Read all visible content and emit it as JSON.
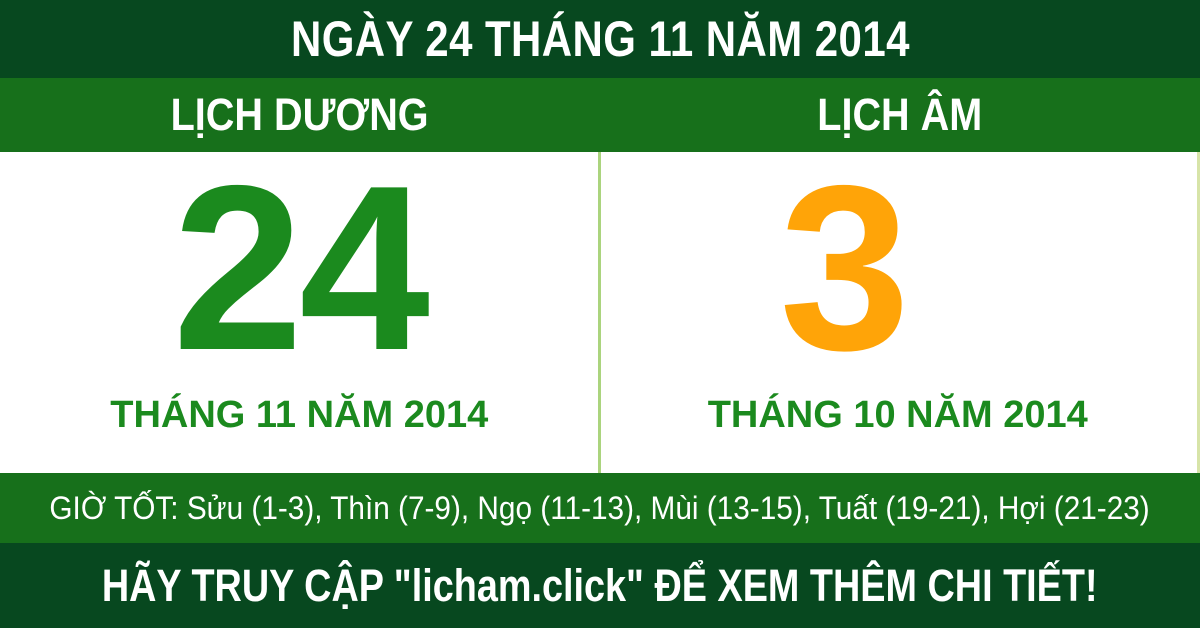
{
  "colors": {
    "dark_green": "#07481f",
    "medium_green": "#17701b",
    "number_green": "#1b8a1e",
    "lunar_orange": "#ffa408",
    "divider_light_green": "#abd47e",
    "text_white": "#ffffff"
  },
  "top_bar": {
    "title": "NGÀY 24 THÁNG 11 NĂM 2014"
  },
  "columns_header": {
    "solar_label": "LỊCH DƯƠNG",
    "lunar_label": "LỊCH ÂM"
  },
  "solar": {
    "day": "24",
    "month_year": "THÁNG 11 NĂM 2014"
  },
  "lunar": {
    "day": "3",
    "month_year": "THÁNG 10 NĂM 2014"
  },
  "good_hours": {
    "text": "GIỜ TỐT: Sửu (1-3), Thìn (7-9), Ngọ (11-13), Mùi (13-15), Tuất (19-21), Hợi (21-23)"
  },
  "footer": {
    "text": "HÃY TRUY CẬP \"licham.click\" ĐỂ XEM THÊM CHI TIẾT!"
  }
}
